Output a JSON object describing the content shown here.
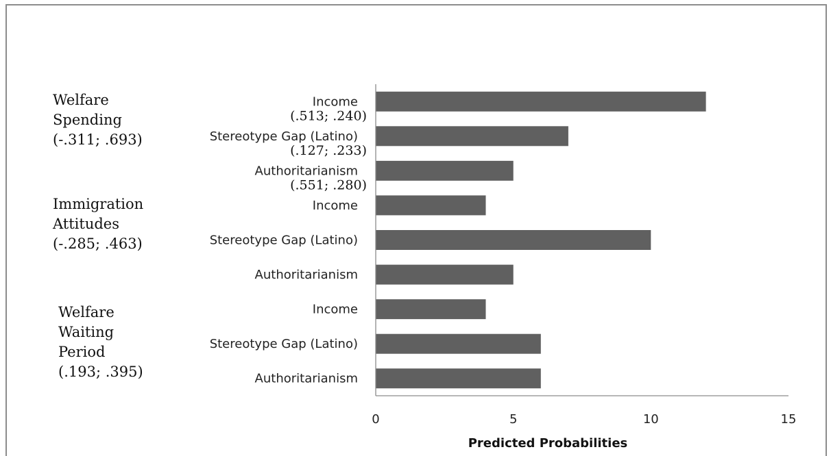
{
  "chart_data": {
    "type": "bar",
    "orientation": "horizontal",
    "xlabel": "Predicted Probabilities",
    "xlim": [
      0,
      15
    ],
    "xticks": [
      0,
      5,
      10,
      15
    ],
    "grid": false,
    "bar_color": "#606060",
    "groups": [
      {
        "label_lines": [
          "Welfare",
          "Spending",
          "(-.311; .693)"
        ],
        "bars": [
          {
            "category": "Income",
            "value": 12,
            "annotation": "(.513; .240)"
          },
          {
            "category": "Stereotype Gap (Latino)",
            "value": 7,
            "annotation": "(.127; .233)"
          },
          {
            "category": "Authoritarianism",
            "value": 5,
            "annotation": "(.551; .280)"
          }
        ]
      },
      {
        "label_lines": [
          "Immigration",
          "Attitudes",
          "(-.285; .463)"
        ],
        "bars": [
          {
            "category": "Income",
            "value": 4
          },
          {
            "category": "Stereotype Gap (Latino)",
            "value": 10
          },
          {
            "category": "Authoritarianism",
            "value": 5
          }
        ]
      },
      {
        "label_lines": [
          "Welfare",
          "Waiting",
          "Period",
          "(.193; .395)"
        ],
        "bars": [
          {
            "category": "Income",
            "value": 4
          },
          {
            "category": "Stereotype Gap (Latino)",
            "value": 6
          },
          {
            "category": "Authoritarianism",
            "value": 6
          }
        ]
      }
    ]
  }
}
